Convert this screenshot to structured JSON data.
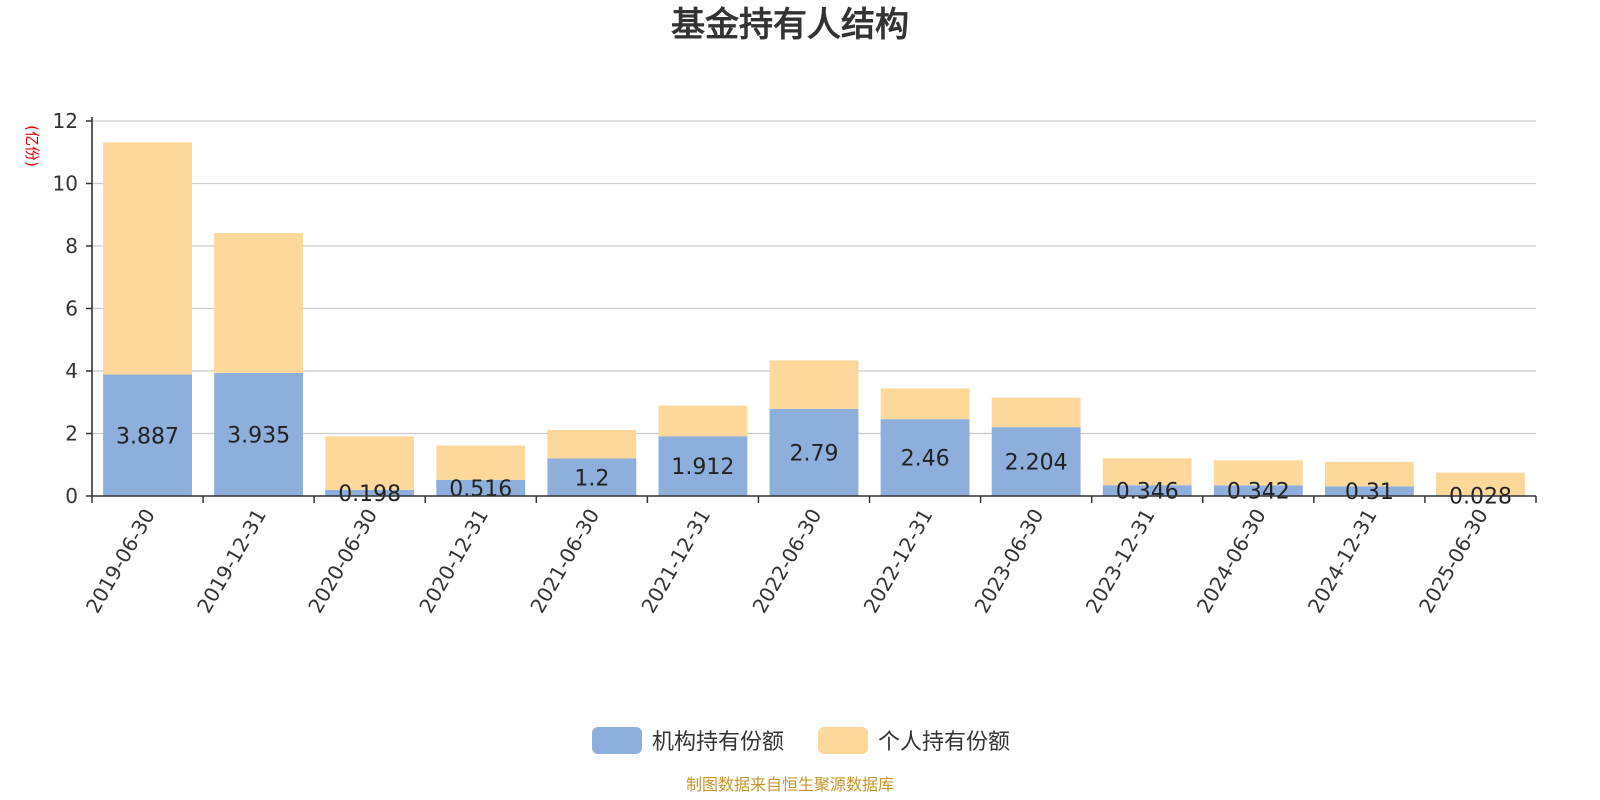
{
  "chart_data": {
    "type": "bar",
    "stacked": true,
    "title": "基金持有人结构",
    "unit_label": "(亿份)",
    "categories": [
      "2019-06-30",
      "2019-12-31",
      "2020-06-30",
      "2020-12-31",
      "2021-06-30",
      "2021-12-31",
      "2022-06-30",
      "2022-12-31",
      "2023-06-30",
      "2023-12-31",
      "2024-06-30",
      "2024-12-31",
      "2025-06-30"
    ],
    "series": [
      {
        "name": "机构持有份额",
        "color": "#8eaedc",
        "values": [
          3.887,
          3.935,
          0.198,
          0.516,
          1.2,
          1.912,
          2.79,
          2.46,
          2.204,
          0.346,
          0.342,
          0.31,
          0.028
        ],
        "labels": [
          "3.887",
          "3.935",
          "0.198",
          "0.516",
          "1.2",
          "1.912",
          "2.79",
          "2.46",
          "2.204",
          "0.346",
          "0.342",
          "0.31",
          "0.028"
        ]
      },
      {
        "name": "个人持有份额",
        "color": "#fdd89a",
        "values": [
          7.43,
          4.48,
          1.71,
          1.1,
          0.91,
          0.98,
          1.55,
          0.98,
          0.94,
          0.86,
          0.8,
          0.78,
          0.72
        ]
      }
    ],
    "ylim": [
      0,
      12
    ],
    "yticks": [
      0,
      2,
      4,
      6,
      8,
      10,
      12
    ],
    "grid": true,
    "legend_position": "bottom-center"
  },
  "source_note": "制图数据来自恒生聚源数据库"
}
